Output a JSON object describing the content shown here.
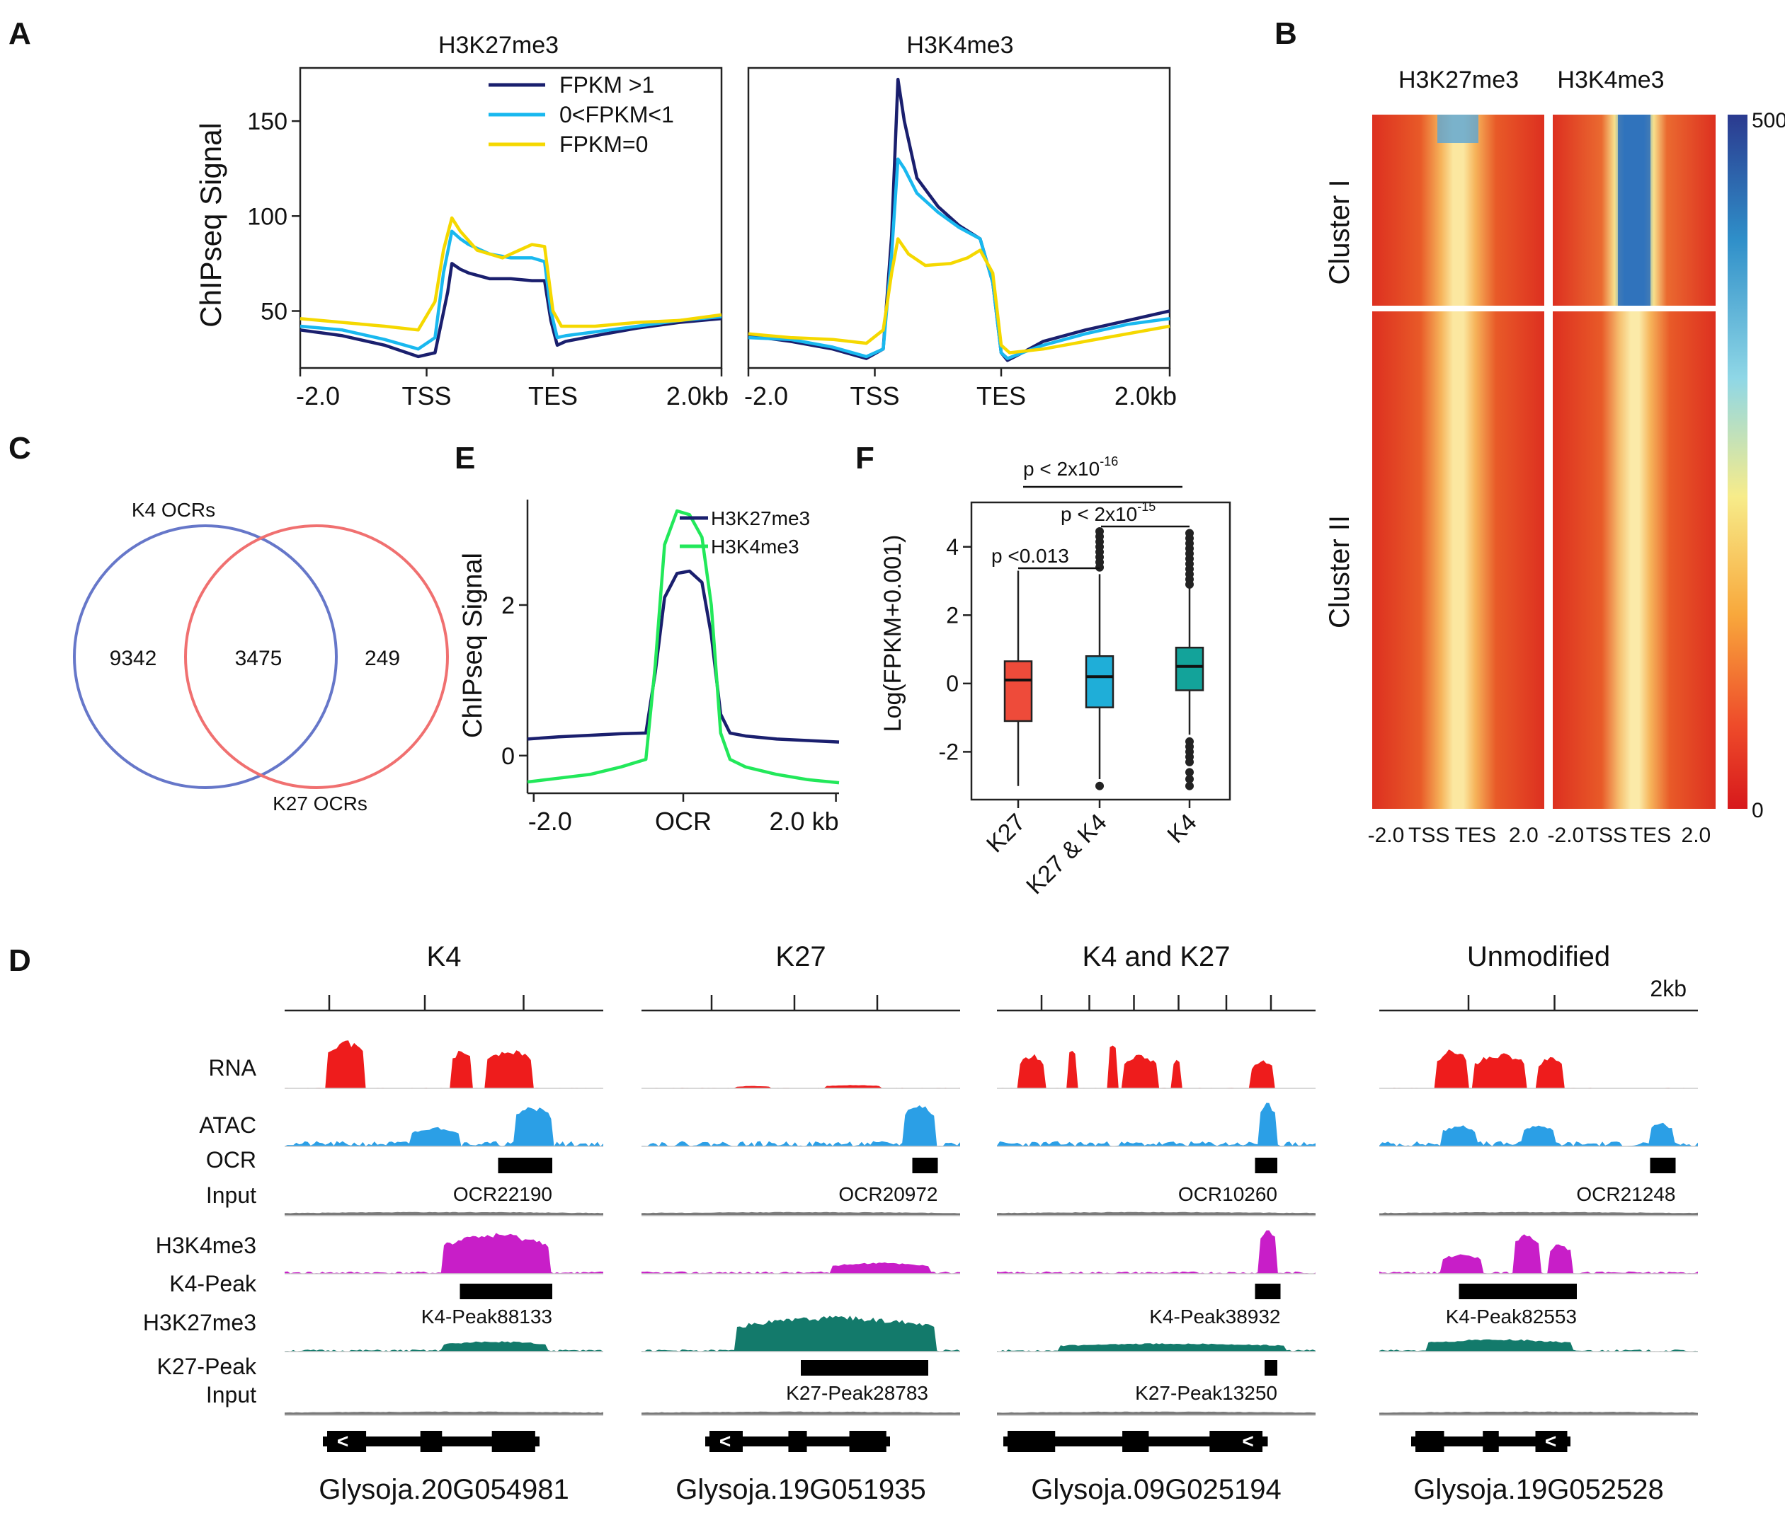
{
  "colors": {
    "navy": "#1a1f6e",
    "cyan": "#19b8ef",
    "yellow": "#f5d800",
    "green": "#22e85a",
    "rna": "#ee1c1c",
    "atac": "#2b9fe6",
    "input": "#7a7a7a",
    "k4": "#c81ec8",
    "k27": "#137a6b",
    "venn_blue": "#6677c9",
    "venn_red": "#f07070",
    "box_red": "#ee4b3a",
    "box_blue": "#1faed8",
    "box_teal": "#13a39a"
  },
  "panel_letters": {
    "A": "A",
    "B": "B",
    "C": "C",
    "D": "D",
    "E": "E",
    "F": "F"
  },
  "chart_data": [
    {
      "panel": "A",
      "type": "line",
      "ylabel": "ChIPseq Signal",
      "ylim": [
        20,
        178
      ],
      "yticks": [
        50,
        100,
        150
      ],
      "xticks": [
        "-2.0",
        "TSS",
        "TES",
        "2.0kb"
      ],
      "legend": [
        "FPKM >1",
        "0<FPKM<1",
        "FPKM=0"
      ],
      "subplots": [
        {
          "title": "H3K27me3",
          "series": [
            {
              "name": "FPKM >1",
              "color": "#1a1f6e",
              "x": [
                0,
                10,
                20,
                28,
                32,
                35,
                36,
                38,
                40,
                45,
                50,
                55,
                58,
                59.5,
                61,
                63,
                70,
                80,
                90,
                100
              ],
              "y": [
                40,
                37,
                32,
                26,
                28,
                60,
                75,
                72,
                70,
                67,
                67,
                66,
                66,
                45,
                32,
                34,
                37,
                41,
                44,
                46
              ]
            },
            {
              "name": "0<FPKM<1",
              "color": "#19b8ef",
              "x": [
                0,
                10,
                20,
                28,
                32,
                34,
                36,
                38,
                40,
                45,
                50,
                55,
                58,
                59.5,
                61,
                63,
                70,
                80,
                90,
                100
              ],
              "y": [
                42,
                40,
                35,
                30,
                36,
                70,
                92,
                88,
                85,
                80,
                78,
                78,
                76,
                50,
                36,
                37,
                39,
                42,
                45,
                47
              ]
            },
            {
              "name": "FPKM=0",
              "color": "#f5d800",
              "x": [
                0,
                10,
                20,
                28,
                32,
                34,
                36,
                38,
                42,
                48,
                52,
                55,
                58,
                60,
                62,
                70,
                80,
                90,
                100
              ],
              "y": [
                46,
                44,
                42,
                40,
                55,
                82,
                99,
                92,
                82,
                78,
                82,
                85,
                84,
                50,
                42,
                42,
                44,
                45,
                48
              ]
            }
          ]
        },
        {
          "title": "H3K4me3",
          "series": [
            {
              "name": "FPKM >1",
              "color": "#1a1f6e",
              "x": [
                0,
                10,
                20,
                28,
                32,
                34,
                35.5,
                37,
                40,
                45,
                50,
                55,
                58,
                60,
                61.5,
                65,
                70,
                80,
                90,
                100
              ],
              "y": [
                37,
                34,
                30,
                25,
                30,
                90,
                172,
                150,
                120,
                105,
                95,
                88,
                65,
                28,
                24,
                28,
                34,
                40,
                45,
                50
              ]
            },
            {
              "name": "0<FPKM<1",
              "color": "#19b8ef",
              "x": [
                0,
                10,
                20,
                28,
                32,
                34,
                35.5,
                37,
                40,
                45,
                50,
                55,
                58,
                60,
                61.5,
                65,
                70,
                80,
                90,
                100
              ],
              "y": [
                36,
                35,
                31,
                26,
                30,
                80,
                130,
                125,
                112,
                102,
                94,
                88,
                65,
                28,
                25,
                28,
                32,
                38,
                43,
                46
              ]
            },
            {
              "name": "FPKM=0",
              "color": "#f5d800",
              "x": [
                0,
                10,
                20,
                28,
                32,
                34,
                35.5,
                38,
                42,
                48,
                52,
                55,
                58,
                60,
                62,
                70,
                80,
                90,
                100
              ],
              "y": [
                38,
                36,
                35,
                33,
                40,
                70,
                88,
                80,
                74,
                75,
                78,
                82,
                70,
                32,
                28,
                30,
                34,
                38,
                42
              ]
            }
          ]
        }
      ]
    },
    {
      "panel": "B",
      "type": "heatmap",
      "columns": [
        "H3K27me3",
        "H3K4me3"
      ],
      "row_groups": [
        "Cluster I",
        "Cluster II"
      ],
      "xticks": [
        "-2.0",
        "TSS",
        "TES",
        "2.0"
      ],
      "colorbar": {
        "min": 0,
        "max": 500,
        "labels": [
          "500",
          "0"
        ]
      }
    },
    {
      "panel": "C",
      "type": "venn",
      "sets": [
        "K4 OCRs",
        "K27 OCRs"
      ],
      "values": {
        "only_first": "9342",
        "both": "3475",
        "only_second": "249"
      }
    },
    {
      "panel": "E",
      "type": "line",
      "ylabel": "ChIPseq Signal",
      "ylim": [
        -0.5,
        3.4
      ],
      "yticks": [
        0,
        2
      ],
      "xticks": [
        "-2.0",
        "OCR",
        "2.0 kb"
      ],
      "series": [
        {
          "name": "H3K27me3",
          "color": "#1a1f6e",
          "x": [
            0,
            10,
            20,
            30,
            38,
            41,
            44,
            48,
            52,
            56,
            59,
            62,
            65,
            70,
            80,
            90,
            100
          ],
          "y": [
            0.22,
            0.25,
            0.27,
            0.29,
            0.3,
            1.1,
            2.1,
            2.42,
            2.45,
            2.3,
            1.6,
            0.55,
            0.3,
            0.26,
            0.22,
            0.2,
            0.18
          ]
        },
        {
          "name": "H3K4me3",
          "color": "#22e85a",
          "x": [
            0,
            10,
            20,
            30,
            38,
            41,
            44,
            48,
            52,
            56,
            59,
            62,
            65,
            70,
            80,
            90,
            100
          ],
          "y": [
            -0.35,
            -0.3,
            -0.25,
            -0.15,
            -0.05,
            1.2,
            2.8,
            3.25,
            3.2,
            2.9,
            2.0,
            0.3,
            -0.05,
            -0.15,
            -0.25,
            -0.32,
            -0.36
          ]
        }
      ]
    },
    {
      "panel": "F",
      "type": "box",
      "ylabel": "Log(FPKM+0.001)",
      "ylim": [
        -3.4,
        5.3
      ],
      "yticks": [
        4,
        2,
        0,
        -2
      ],
      "categories": [
        "K27",
        "K27 & K4",
        "K4"
      ],
      "boxes": [
        {
          "q1": -1.1,
          "median": 0.1,
          "q3": 0.65,
          "lo": -3.0,
          "hi": 3.3,
          "color": "#ee4b3a",
          "outliers": []
        },
        {
          "q1": -0.7,
          "median": 0.2,
          "q3": 0.8,
          "lo": -2.8,
          "hi": 3.2,
          "color": "#1faed8",
          "outliers": [
            -3.0,
            3.4,
            3.55,
            3.7,
            3.85,
            4.0,
            4.15,
            4.3,
            4.45
          ]
        },
        {
          "q1": -0.2,
          "median": 0.5,
          "q3": 1.05,
          "lo": -1.5,
          "hi": 2.8,
          "color": "#13a39a",
          "outliers": [
            -1.7,
            -1.85,
            -2.0,
            -2.15,
            -2.3,
            -2.6,
            -2.8,
            -3.0,
            2.9,
            3.05,
            3.2,
            3.35,
            3.5,
            3.65,
            3.8,
            3.95,
            4.1,
            4.25,
            4.4
          ]
        }
      ],
      "annotations": [
        "p < 2x10",
        "-16",
        "p < 2x10",
        "-15",
        "p <0.013"
      ]
    },
    {
      "panel": "D",
      "type": "genome_tracks",
      "track_labels": [
        "RNA",
        "ATAC",
        "OCR",
        "Input",
        "H3K4me3",
        "K4-Peak",
        "H3K27me3",
        "K27-Peak",
        "Input"
      ],
      "scale_label": "2kb",
      "loci": [
        {
          "title": "K4",
          "gene": "Glysoja.20G054981",
          "ocr": "OCR22190",
          "k4_peak": "K4-Peak88133",
          "k27_peak": ""
        },
        {
          "title": "K27",
          "gene": "Glysoja.19G051935",
          "ocr": "OCR20972",
          "k4_peak": "",
          "k27_peak": "K27-Peak28783"
        },
        {
          "title": "K4 and K27",
          "gene": "Glysoja.09G025194",
          "ocr": "OCR10260",
          "k4_peak": "K4-Peak38932",
          "k27_peak": "K27-Peak13250"
        },
        {
          "title": "Unmodified",
          "gene": "Glysoja.19G052528",
          "ocr": "OCR21248",
          "k4_peak": "K4-Peak82553",
          "k27_peak": ""
        }
      ]
    }
  ]
}
